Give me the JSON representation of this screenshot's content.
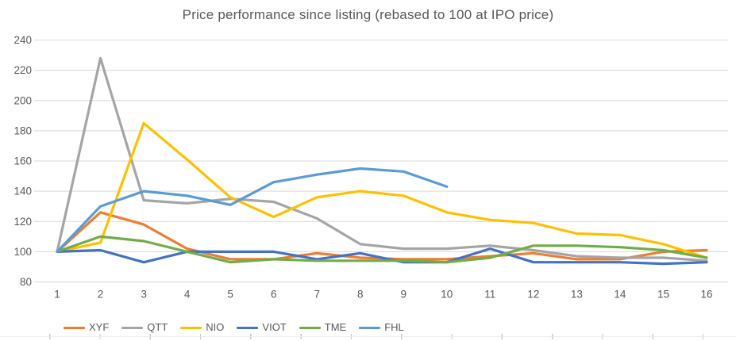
{
  "title": "Price performance since listing (rebased to 100 at IPO price)",
  "colors": {
    "title_text": "#595959",
    "axis_text": "#595959",
    "gridline": "#D9D9D9",
    "xyf": "#ED7D31",
    "qtt": "#A5A5A5",
    "nio": "#FFC000",
    "viot": "#4472C4",
    "tme": "#70AD47",
    "fhl": "#5B9BD5"
  },
  "chart_data": {
    "type": "line",
    "title": "Price performance since listing (rebased to 100 at IPO price)",
    "xlabel": "",
    "ylabel": "",
    "x": [
      1,
      2,
      3,
      4,
      5,
      6,
      7,
      8,
      9,
      10,
      11,
      12,
      13,
      14,
      15,
      16
    ],
    "x_tick_labels": [
      "1",
      "2",
      "3",
      "4",
      "5",
      "6",
      "7",
      "8",
      "9",
      "10",
      "11",
      "12",
      "13",
      "14",
      "15",
      "16"
    ],
    "y_ticks": [
      240,
      220,
      200,
      180,
      160,
      140,
      120,
      100,
      80
    ],
    "ylim": [
      80,
      240
    ],
    "grid": true,
    "legend_position": "bottom-left",
    "series": [
      {
        "name": "XYF",
        "color": "#ED7D31",
        "values": [
          100,
          126,
          118,
          102,
          95,
          95,
          99,
          96,
          95,
          95,
          97,
          99,
          95,
          95,
          100,
          101
        ]
      },
      {
        "name": "QTT",
        "color": "#A5A5A5",
        "values": [
          100,
          228,
          134,
          132,
          135,
          133,
          122,
          105,
          102,
          102,
          104,
          101,
          97,
          96,
          96,
          94
        ]
      },
      {
        "name": "NIO",
        "color": "#FFC000",
        "values": [
          100,
          106,
          185,
          161,
          136,
          123,
          136,
          140,
          137,
          126,
          121,
          119,
          112,
          111,
          105,
          96
        ]
      },
      {
        "name": "VIOT",
        "color": "#4472C4",
        "values": [
          100,
          101,
          93,
          100,
          100,
          100,
          95,
          99,
          93,
          93,
          102,
          93,
          93,
          93,
          92,
          93
        ]
      },
      {
        "name": "TME",
        "color": "#70AD47",
        "values": [
          100,
          110,
          107,
          100,
          93,
          95,
          94,
          94,
          94,
          93,
          96,
          104,
          104,
          103,
          101,
          96
        ]
      },
      {
        "name": "FHL",
        "color": "#5B9BD5",
        "values": [
          100,
          130,
          140,
          137,
          131,
          146,
          151,
          155,
          153,
          143,
          null,
          null,
          null,
          null,
          null,
          null
        ]
      }
    ]
  }
}
